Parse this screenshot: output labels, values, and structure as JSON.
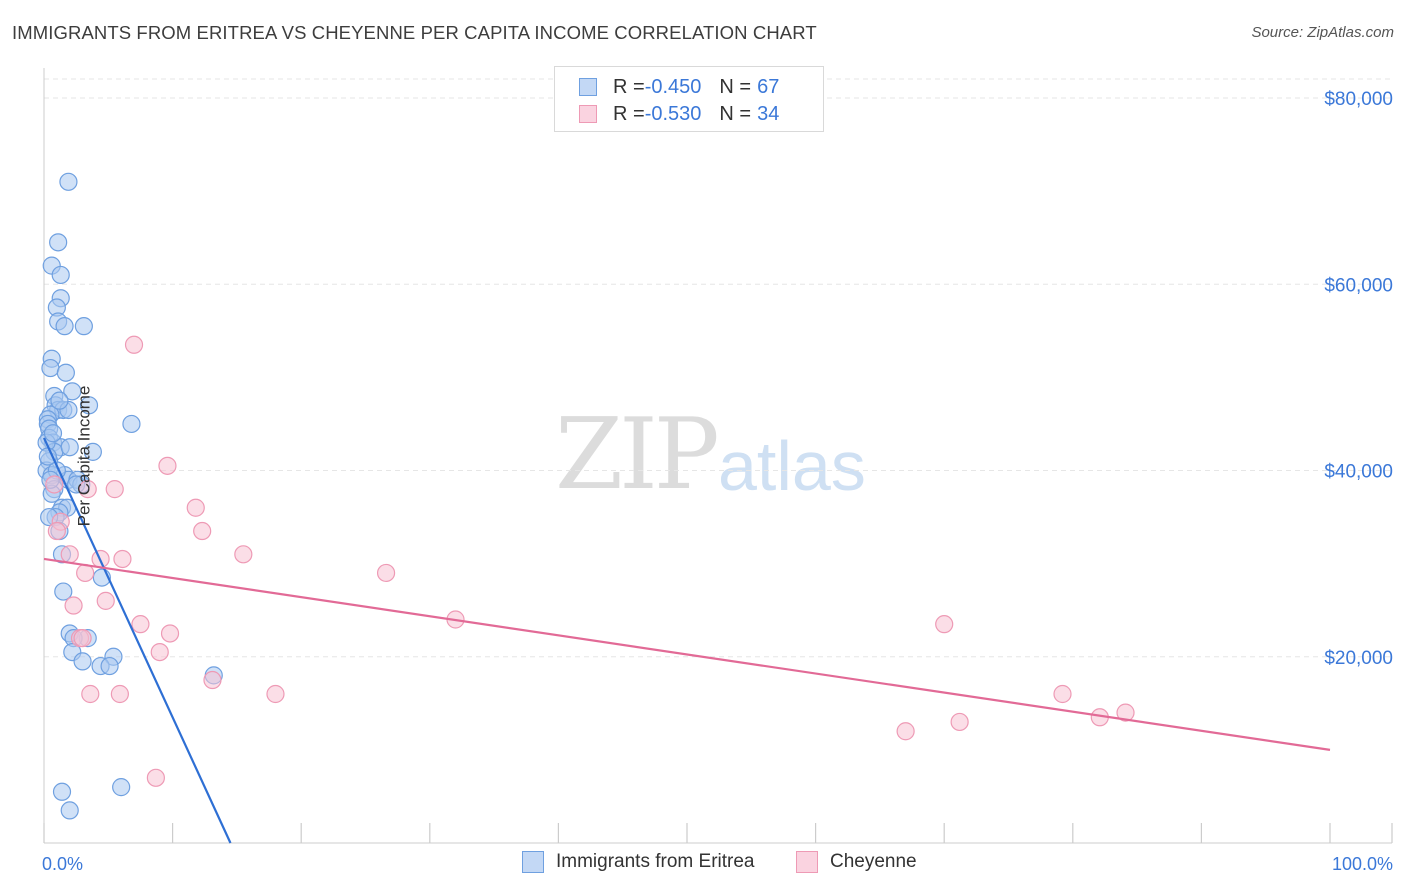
{
  "header": {
    "title": "IMMIGRANTS FROM ERITREA VS CHEYENNE PER CAPITA INCOME CORRELATION CHART",
    "source": "Source: ZipAtlas.com"
  },
  "watermark": {
    "zip": "ZIP",
    "atlas": "atlas"
  },
  "legend_top": [
    {
      "r_label": "R = ",
      "r_value": "-0.450",
      "n_label": "N = ",
      "n_value": "67"
    },
    {
      "r_label": "R = ",
      "r_value": "-0.530",
      "n_label": "N = ",
      "n_value": "34"
    }
  ],
  "legend_bottom": [
    "Immigrants from Eritrea",
    "Cheyenne"
  ],
  "colors": {
    "eritrea_fill": "#aac8f0",
    "eritrea_stroke": "#6fa0e0",
    "eritrea_line": "#2e6fd4",
    "cheyenne_fill": "#f7c3d4",
    "cheyenne_stroke": "#ee9ab5",
    "cheyenne_line": "#e26a96",
    "tick_label": "#3b78d8",
    "grid": "#e6e6e6"
  },
  "chart_data": {
    "type": "scatter",
    "title": "IMMIGRANTS FROM ERITREA VS CHEYENNE PER CAPITA INCOME CORRELATION CHART",
    "xlabel": "",
    "ylabel": "Per Capita Income",
    "xlim": [
      0,
      100
    ],
    "ylim": [
      0,
      80000
    ],
    "x_tick_labels": [
      "0.0%",
      "100.0%"
    ],
    "y_ticks": [
      20000,
      40000,
      60000,
      80000
    ],
    "y_tick_labels": [
      "$20,000",
      "$40,000",
      "$60,000",
      "$80,000"
    ],
    "grid": true,
    "legend": "top-center and bottom",
    "series": [
      {
        "name": "Immigrants from Eritrea",
        "r": -0.45,
        "n": 67,
        "trend": {
          "x": [
            0,
            14.5
          ],
          "y": [
            43500,
            0
          ]
        },
        "points": [
          [
            1.9,
            71000
          ],
          [
            1.1,
            64500
          ],
          [
            0.6,
            62000
          ],
          [
            1.3,
            61000
          ],
          [
            1.3,
            58500
          ],
          [
            1.0,
            57500
          ],
          [
            1.1,
            56000
          ],
          [
            1.6,
            55500
          ],
          [
            3.1,
            55500
          ],
          [
            0.6,
            52000
          ],
          [
            0.5,
            51000
          ],
          [
            1.7,
            50500
          ],
          [
            2.2,
            48500
          ],
          [
            0.8,
            48000
          ],
          [
            0.9,
            47000
          ],
          [
            1.1,
            46500
          ],
          [
            1.5,
            46500
          ],
          [
            0.5,
            46000
          ],
          [
            3.5,
            47000
          ],
          [
            1.9,
            46500
          ],
          [
            0.3,
            45500
          ],
          [
            0.3,
            45000
          ],
          [
            0.4,
            44500
          ],
          [
            6.8,
            45000
          ],
          [
            0.4,
            43500
          ],
          [
            0.7,
            43000
          ],
          [
            1.3,
            42500
          ],
          [
            0.8,
            42000
          ],
          [
            3.8,
            42000
          ],
          [
            0.4,
            41000
          ],
          [
            0.2,
            40000
          ],
          [
            0.6,
            39500
          ],
          [
            1.6,
            39500
          ],
          [
            1.9,
            39000
          ],
          [
            2.6,
            39000
          ],
          [
            2.9,
            38500
          ],
          [
            0.8,
            38000
          ],
          [
            1.4,
            36000
          ],
          [
            1.8,
            36000
          ],
          [
            1.2,
            35500
          ],
          [
            0.9,
            35000
          ],
          [
            0.4,
            35000
          ],
          [
            1.2,
            33500
          ],
          [
            1.4,
            31000
          ],
          [
            4.5,
            28500
          ],
          [
            1.5,
            27000
          ],
          [
            2.0,
            22500
          ],
          [
            3.4,
            22000
          ],
          [
            2.3,
            22000
          ],
          [
            2.2,
            20500
          ],
          [
            5.4,
            20000
          ],
          [
            3.0,
            19500
          ],
          [
            4.4,
            19000
          ],
          [
            5.1,
            19000
          ],
          [
            13.2,
            18000
          ],
          [
            1.4,
            5500
          ],
          [
            6.0,
            6000
          ],
          [
            2.0,
            3500
          ],
          [
            0.2,
            43000
          ],
          [
            0.6,
            37500
          ],
          [
            1.0,
            40000
          ],
          [
            0.3,
            41500
          ],
          [
            0.5,
            39000
          ],
          [
            2.0,
            42500
          ],
          [
            1.2,
            47500
          ],
          [
            0.7,
            44000
          ],
          [
            2.5,
            38500
          ]
        ]
      },
      {
        "name": "Cheyenne",
        "r": -0.53,
        "n": 34,
        "trend": {
          "x": [
            0,
            100
          ],
          "y": [
            30500,
            10000
          ]
        },
        "points": [
          [
            7.0,
            53500
          ],
          [
            9.6,
            40500
          ],
          [
            0.8,
            38500
          ],
          [
            5.5,
            38000
          ],
          [
            3.4,
            38000
          ],
          [
            11.8,
            36000
          ],
          [
            1.3,
            34500
          ],
          [
            12.3,
            33500
          ],
          [
            1.0,
            33500
          ],
          [
            15.5,
            31000
          ],
          [
            2.0,
            31000
          ],
          [
            6.1,
            30500
          ],
          [
            4.4,
            30500
          ],
          [
            26.6,
            29000
          ],
          [
            3.2,
            29000
          ],
          [
            4.8,
            26000
          ],
          [
            2.3,
            25500
          ],
          [
            32.0,
            24000
          ],
          [
            7.5,
            23500
          ],
          [
            70.0,
            23500
          ],
          [
            9.8,
            22500
          ],
          [
            2.8,
            22000
          ],
          [
            9.0,
            20500
          ],
          [
            13.1,
            17500
          ],
          [
            3.6,
            16000
          ],
          [
            5.9,
            16000
          ],
          [
            18.0,
            16000
          ],
          [
            79.2,
            16000
          ],
          [
            84.1,
            14000
          ],
          [
            82.1,
            13500
          ],
          [
            71.2,
            13000
          ],
          [
            67.0,
            12000
          ],
          [
            8.7,
            7000
          ],
          [
            3.0,
            22000
          ]
        ]
      }
    ]
  }
}
